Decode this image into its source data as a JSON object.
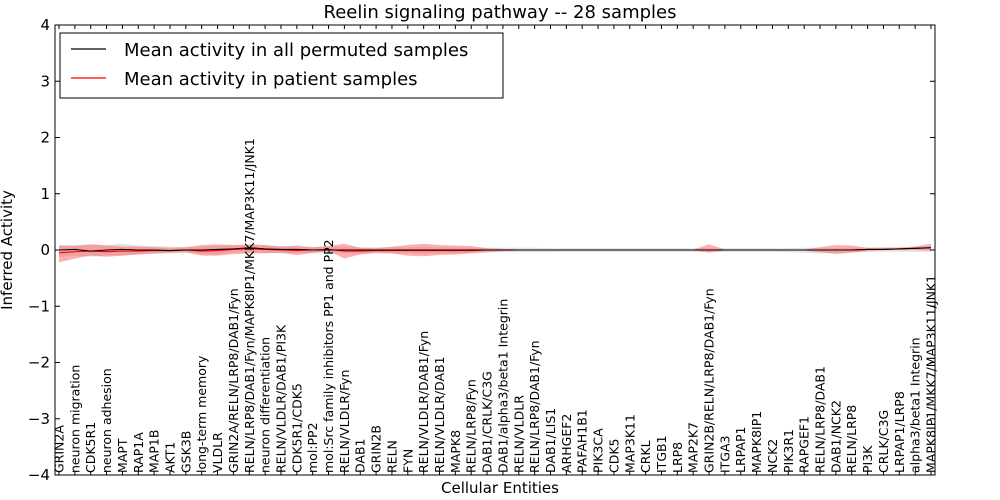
{
  "chart_data": {
    "type": "line",
    "title": "Reelin signaling pathway -- 28 samples",
    "xlabel": "Cellular Entities",
    "ylabel": "Inferred Activity",
    "ylim": [
      -4,
      4
    ],
    "yticks": [
      -4,
      -3,
      -2,
      -1,
      0,
      1,
      2,
      3,
      4
    ],
    "grid": false,
    "legend_position": "top-left",
    "colors": {
      "permuted": "#000000",
      "patient": "#ff0000",
      "permuted_band": "#c8c8c8",
      "patient_band": "#ff6060"
    },
    "categories": [
      "GRIN2A",
      "neuron migration",
      "CDK5R1",
      "neuron adhesion",
      "MAPT",
      "RAP1A",
      "MAP1B",
      "AKT1",
      "GSK3B",
      "long-term memory",
      "VLDLR",
      "GRIN2A/RELN/LRP8/DAB1/Fyn",
      "RELN/LRP8/DAB1/Fyn/MAPK8IP1/MKK7/MAP3K11/JNK1",
      "neuron differentiation",
      "RELN/VLDLR/DAB1/PI3K",
      "CDK5R1/CDK5",
      "mol:PP2",
      "mol:Src family inhibitors PP1 and PP2",
      "RELN/VLDLR/Fyn",
      "DAB1",
      "GRIN2B",
      "RELN",
      "FYN",
      "RELN/VLDLR/DAB1/Fyn",
      "RELN/VLDLR/DAB1",
      "MAPK8",
      "RELN/LRP8/Fyn",
      "DAB1/CRLK/C3G",
      "DAB1/alpha3/beta1 Integrin",
      "RELN/VLDLR",
      "RELN/LRP8/DAB1/Fyn",
      "DAB1/LIS1",
      "ARHGEF2",
      "PAFAH1B1",
      "PIK3CA",
      "CDK5",
      "MAP3K11",
      "CRKL",
      "ITGB1",
      "LRP8",
      "MAP2K7",
      "GRIN2B/RELN/LRP8/DAB1/Fyn",
      "ITGA3",
      "LRPAP1",
      "MAPK8IP1",
      "NCK2",
      "PIK3R1",
      "RAPGEF1",
      "RELN/LRP8/DAB1",
      "DAB1/NCK2",
      "RELN/LRP8",
      "PI3K",
      "CRLK/C3G",
      "LRPAP1/LRP8",
      "alpha3/beta1 Integrin",
      "MAPK8IP1/MKK7/MAP3K11/JNK1"
    ],
    "series": [
      {
        "name": "Mean activity in all permuted samples",
        "values": [
          0.0,
          0.01,
          -0.02,
          0.0,
          0.01,
          0.0,
          0.0,
          -0.01,
          0.0,
          0.0,
          0.01,
          0.02,
          0.04,
          0.02,
          0.01,
          0.01,
          0.0,
          0.0,
          0.0,
          0.0,
          0.0,
          0.0,
          0.0,
          0.0,
          0.0,
          0.0,
          0.0,
          0.0,
          0.0,
          0.0,
          0.0,
          0.0,
          0.0,
          0.0,
          0.0,
          0.0,
          0.0,
          0.0,
          0.0,
          0.0,
          0.0,
          0.0,
          0.0,
          0.0,
          0.0,
          0.0,
          0.0,
          0.0,
          0.0,
          0.0,
          0.0,
          0.01,
          0.01,
          0.02,
          0.03,
          0.04
        ],
        "lower": [
          -0.12,
          -0.1,
          -0.12,
          -0.1,
          -0.1,
          -0.08,
          -0.07,
          -0.06,
          -0.05,
          -0.07,
          -0.08,
          -0.05,
          -0.04,
          -0.05,
          -0.06,
          -0.06,
          -0.06,
          -0.06,
          -0.06,
          -0.07,
          -0.06,
          -0.06,
          -0.06,
          -0.07,
          -0.06,
          -0.06,
          -0.05,
          -0.04,
          -0.04,
          -0.04,
          -0.04,
          -0.04,
          -0.03,
          -0.03,
          -0.03,
          -0.03,
          -0.03,
          -0.03,
          -0.03,
          -0.03,
          -0.03,
          -0.03,
          -0.03,
          -0.03,
          -0.03,
          -0.03,
          -0.04,
          -0.05,
          -0.06,
          -0.05,
          -0.04,
          -0.03,
          -0.03,
          -0.03,
          -0.03,
          -0.03
        ],
        "upper": [
          0.08,
          0.09,
          0.1,
          0.09,
          0.11,
          0.08,
          0.07,
          0.06,
          0.05,
          0.06,
          0.08,
          0.08,
          0.09,
          0.08,
          0.07,
          0.06,
          0.05,
          0.06,
          0.06,
          0.05,
          0.05,
          0.05,
          0.05,
          0.06,
          0.05,
          0.05,
          0.04,
          0.04,
          0.04,
          0.04,
          0.04,
          0.03,
          0.03,
          0.03,
          0.03,
          0.03,
          0.03,
          0.03,
          0.03,
          0.03,
          0.03,
          0.03,
          0.03,
          0.03,
          0.03,
          0.03,
          0.03,
          0.04,
          0.04,
          0.04,
          0.04,
          0.04,
          0.05,
          0.05,
          0.06,
          0.07
        ]
      },
      {
        "name": "Mean activity in patient samples",
        "values": [
          -0.05,
          -0.03,
          -0.02,
          -0.03,
          -0.02,
          -0.02,
          -0.01,
          -0.01,
          0.0,
          -0.02,
          -0.01,
          0.01,
          0.02,
          0.01,
          0.0,
          -0.01,
          0.0,
          0.01,
          -0.02,
          -0.02,
          -0.01,
          -0.01,
          -0.01,
          -0.01,
          -0.01,
          -0.01,
          -0.01,
          0.0,
          0.0,
          0.0,
          0.0,
          0.0,
          0.0,
          0.0,
          0.0,
          0.0,
          0.0,
          0.0,
          0.0,
          0.0,
          0.0,
          0.0,
          0.0,
          0.0,
          0.0,
          0.0,
          0.0,
          0.0,
          0.0,
          0.0,
          0.0,
          0.01,
          0.01,
          0.02,
          0.03,
          0.04
        ],
        "lower": [
          -0.22,
          -0.15,
          -0.1,
          -0.12,
          -0.1,
          -0.08,
          -0.06,
          -0.05,
          -0.04,
          -0.1,
          -0.1,
          -0.07,
          -0.06,
          -0.06,
          -0.05,
          -0.09,
          -0.05,
          -0.02,
          -0.15,
          -0.08,
          -0.05,
          -0.06,
          -0.1,
          -0.11,
          -0.09,
          -0.08,
          -0.06,
          -0.04,
          -0.02,
          -0.01,
          -0.01,
          -0.01,
          -0.01,
          -0.01,
          -0.01,
          -0.01,
          -0.01,
          -0.01,
          -0.01,
          -0.01,
          -0.01,
          -0.05,
          -0.01,
          -0.01,
          -0.01,
          -0.01,
          -0.01,
          -0.01,
          -0.04,
          -0.07,
          -0.05,
          -0.02,
          0.0,
          0.0,
          0.0,
          -0.01
        ],
        "upper": [
          0.08,
          0.07,
          0.1,
          0.08,
          0.06,
          0.06,
          0.05,
          0.04,
          0.05,
          0.09,
          0.1,
          0.09,
          0.1,
          0.09,
          0.06,
          0.08,
          0.05,
          0.07,
          0.11,
          0.04,
          0.03,
          0.06,
          0.09,
          0.11,
          0.09,
          0.08,
          0.07,
          0.03,
          0.02,
          0.01,
          0.01,
          0.01,
          0.01,
          0.01,
          0.01,
          0.01,
          0.01,
          0.01,
          0.01,
          0.01,
          0.01,
          0.1,
          0.01,
          0.01,
          0.01,
          0.01,
          0.01,
          0.01,
          0.05,
          0.09,
          0.08,
          0.04,
          0.04,
          0.04,
          0.06,
          0.11
        ]
      }
    ]
  }
}
